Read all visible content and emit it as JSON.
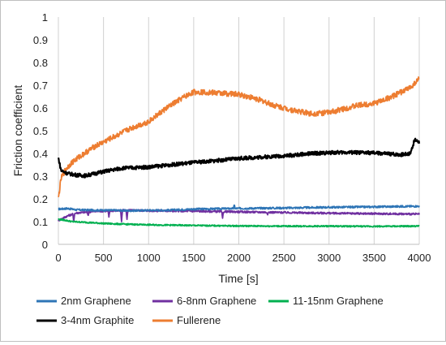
{
  "chart_data": {
    "type": "line",
    "title": "",
    "xlabel": "Time [s]",
    "ylabel": "Friction coefficient",
    "xlim": [
      0,
      4000
    ],
    "ylim": [
      0,
      1
    ],
    "x_ticks": [
      0,
      500,
      1000,
      1500,
      2000,
      2500,
      3000,
      3500,
      4000
    ],
    "y_ticks": [
      0,
      0.1,
      0.2,
      0.3,
      0.4,
      0.5,
      0.6,
      0.7,
      0.8,
      0.9,
      1
    ],
    "grid": "vertical",
    "legend_position": "bottom",
    "series": [
      {
        "name": "2nm Graphene",
        "color": "#2e75b6",
        "x": [
          0,
          100,
          200,
          400,
          600,
          800,
          1000,
          1200,
          1500,
          2000,
          2500,
          3000,
          3500,
          4000
        ],
        "y": [
          0.155,
          0.158,
          0.152,
          0.15,
          0.15,
          0.148,
          0.15,
          0.15,
          0.155,
          0.158,
          0.16,
          0.163,
          0.165,
          0.168
        ],
        "noise": 0.004,
        "spikes": [
          [
            1950,
            0.175
          ],
          [
            2380,
            0.163
          ]
        ]
      },
      {
        "name": "6-8nm Graphene",
        "color": "#7030a0",
        "x": [
          0,
          100,
          200,
          400,
          600,
          800,
          1000,
          1500,
          2000,
          2500,
          3000,
          3500,
          4000
        ],
        "y": [
          0.105,
          0.125,
          0.138,
          0.145,
          0.148,
          0.15,
          0.148,
          0.146,
          0.143,
          0.14,
          0.137,
          0.135,
          0.133
        ],
        "noise": 0.004,
        "spikes": [
          [
            170,
            0.1
          ],
          [
            330,
            0.125
          ],
          [
            560,
            0.12
          ],
          [
            700,
            0.1
          ],
          [
            760,
            0.11
          ],
          [
            1820,
            0.115
          ],
          [
            2320,
            0.13
          ]
        ]
      },
      {
        "name": "11-15nm Graphene",
        "color": "#00b050",
        "x": [
          0,
          50,
          150,
          300,
          500,
          700,
          1000,
          1500,
          2000,
          2500,
          3000,
          3500,
          4000
        ],
        "y": [
          0.11,
          0.108,
          0.1,
          0.097,
          0.092,
          0.089,
          0.086,
          0.083,
          0.081,
          0.08,
          0.08,
          0.079,
          0.08
        ],
        "noise": 0.003,
        "spikes": []
      },
      {
        "name": "3-4nm Graphite",
        "color": "#000000",
        "x": [
          0,
          30,
          100,
          200,
          300,
          500,
          700,
          1000,
          1200,
          1500,
          1800,
          2000,
          2300,
          2600,
          2800,
          3000,
          3200,
          3500,
          3800,
          3900,
          3950,
          4000
        ],
        "y": [
          0.38,
          0.325,
          0.312,
          0.305,
          0.302,
          0.32,
          0.335,
          0.34,
          0.348,
          0.36,
          0.37,
          0.378,
          0.385,
          0.392,
          0.4,
          0.403,
          0.405,
          0.402,
          0.395,
          0.4,
          0.46,
          0.45
        ],
        "noise": 0.008,
        "spikes": []
      },
      {
        "name": "Fullerene",
        "color": "#ed7d31",
        "x": [
          0,
          30,
          80,
          150,
          250,
          400,
          600,
          800,
          1000,
          1200,
          1400,
          1500,
          1600,
          1800,
          2000,
          2200,
          2400,
          2600,
          2800,
          3000,
          3200,
          3300,
          3500,
          3700,
          3900,
          4000
        ],
        "y": [
          0.2,
          0.29,
          0.33,
          0.36,
          0.39,
          0.43,
          0.47,
          0.51,
          0.54,
          0.6,
          0.65,
          0.67,
          0.67,
          0.665,
          0.66,
          0.64,
          0.61,
          0.59,
          0.575,
          0.58,
          0.6,
          0.61,
          0.62,
          0.65,
          0.69,
          0.73
        ],
        "noise": 0.012,
        "spikes": []
      }
    ]
  }
}
